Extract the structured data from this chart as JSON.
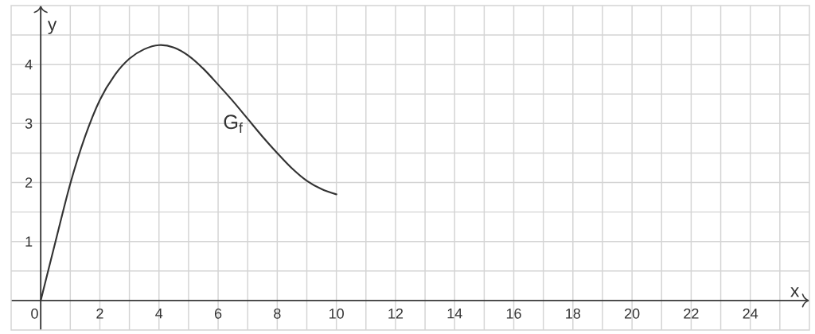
{
  "chart_data": {
    "type": "line",
    "xlabel": "x",
    "ylabel": "y",
    "x": [
      0,
      0.25,
      0.5,
      1,
      1.5,
      2,
      2.5,
      3,
      3.5,
      4,
      4.5,
      5,
      5.5,
      6,
      6.5,
      7,
      7.5,
      8,
      8.5,
      9,
      9.5,
      10
    ],
    "series": [
      {
        "name": "G$_{f}$",
        "color": "#333333",
        "values": [
          0,
          0.5,
          1.0,
          1.98,
          2.78,
          3.4,
          3.82,
          4.1,
          4.26,
          4.33,
          4.29,
          4.15,
          3.93,
          3.66,
          3.38,
          3.08,
          2.78,
          2.5,
          2.24,
          2.03,
          1.89,
          1.8
        ]
      }
    ],
    "xlim": [
      -1,
      26
    ],
    "ylim": [
      -0.5,
      5
    ],
    "xticks": [
      0,
      {
        "value": 1,
        "label": null
      },
      2,
      {
        "value": 3,
        "label": null
      },
      4,
      {
        "value": 5,
        "label": null
      },
      6,
      {
        "value": 7,
        "label": null
      },
      8,
      {
        "value": 9,
        "label": null
      },
      10,
      {
        "value": 11,
        "label": null
      },
      12,
      {
        "value": 13,
        "label": null
      },
      14,
      {
        "value": 15,
        "label": null
      },
      16,
      {
        "value": 17,
        "label": null
      },
      18,
      {
        "value": 19,
        "label": null
      },
      20,
      {
        "value": 21,
        "label": null
      },
      22,
      {
        "value": 23,
        "label": null
      },
      24,
      {
        "value": 25,
        "label": null
      }
    ],
    "yticks": [
      {
        "value": 0.5,
        "label": null
      },
      1,
      {
        "value": 1.5,
        "label": null
      },
      2,
      {
        "value": 2.5,
        "label": null
      },
      3,
      {
        "value": 3.5,
        "label": null
      },
      4,
      {
        "value": 4.5,
        "label": null
      }
    ],
    "grid": true,
    "line_style": "solid"
  }
}
